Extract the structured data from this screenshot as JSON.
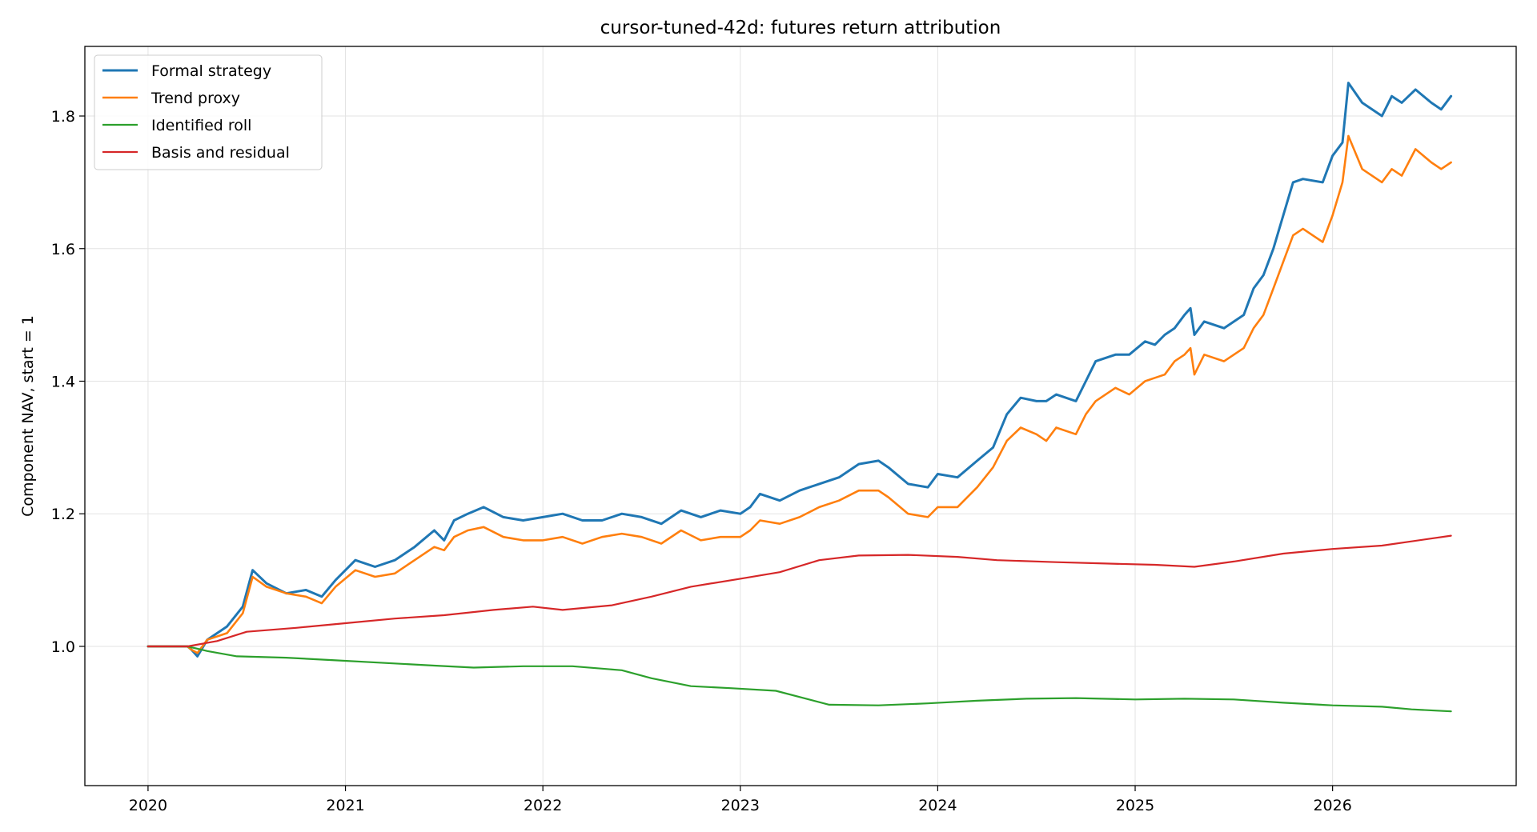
{
  "chart_data": {
    "type": "line",
    "title": "cursor-tuned-42d: futures return attribution",
    "xlabel": "",
    "ylabel": "Component NAV, start = 1",
    "xlim": [
      2019.68,
      2026.93
    ],
    "ylim": [
      0.79,
      1.905
    ],
    "x_ticks": [
      "2020",
      "2021",
      "2022",
      "2023",
      "2024",
      "2025",
      "2026"
    ],
    "y_ticks": [
      "1.0",
      "1.2",
      "1.4",
      "1.6",
      "1.8"
    ],
    "grid": true,
    "legend_position": "upper left",
    "series": [
      {
        "name": "Formal strategy",
        "color": "#1f77b4",
        "x": [
          2020.0,
          2020.2,
          2020.22,
          2020.25,
          2020.3,
          2020.4,
          2020.48,
          2020.53,
          2020.6,
          2020.7,
          2020.8,
          2020.88,
          2020.95,
          2021.05,
          2021.15,
          2021.25,
          2021.35,
          2021.45,
          2021.5,
          2021.55,
          2021.62,
          2021.7,
          2021.8,
          2021.9,
          2022.0,
          2022.1,
          2022.2,
          2022.3,
          2022.4,
          2022.5,
          2022.6,
          2022.7,
          2022.8,
          2022.9,
          2023.0,
          2023.05,
          2023.1,
          2023.2,
          2023.3,
          2023.4,
          2023.5,
          2023.6,
          2023.7,
          2023.75,
          2023.85,
          2023.95,
          2024.0,
          2024.1,
          2024.2,
          2024.28,
          2024.35,
          2024.42,
          2024.5,
          2024.55,
          2024.6,
          2024.7,
          2024.75,
          2024.8,
          2024.9,
          2024.97,
          2025.05,
          2025.1,
          2025.15,
          2025.2,
          2025.25,
          2025.28,
          2025.3,
          2025.35,
          2025.45,
          2025.55,
          2025.6,
          2025.65,
          2025.7,
          2025.75,
          2025.8,
          2025.85,
          2025.95,
          2026.0,
          2026.05,
          2026.08,
          2026.15,
          2026.25,
          2026.3,
          2026.35,
          2026.42,
          2026.5,
          2026.55,
          2026.6
        ],
        "y": [
          1.0,
          1.0,
          0.995,
          0.985,
          1.01,
          1.03,
          1.06,
          1.115,
          1.095,
          1.08,
          1.085,
          1.075,
          1.1,
          1.13,
          1.12,
          1.13,
          1.15,
          1.175,
          1.16,
          1.19,
          1.2,
          1.21,
          1.195,
          1.19,
          1.195,
          1.2,
          1.19,
          1.19,
          1.2,
          1.195,
          1.185,
          1.205,
          1.195,
          1.205,
          1.2,
          1.21,
          1.23,
          1.22,
          1.235,
          1.245,
          1.255,
          1.275,
          1.28,
          1.27,
          1.245,
          1.24,
          1.26,
          1.255,
          1.28,
          1.3,
          1.35,
          1.375,
          1.37,
          1.37,
          1.38,
          1.37,
          1.4,
          1.43,
          1.44,
          1.44,
          1.46,
          1.455,
          1.47,
          1.48,
          1.5,
          1.51,
          1.47,
          1.49,
          1.48,
          1.5,
          1.54,
          1.56,
          1.6,
          1.65,
          1.7,
          1.705,
          1.7,
          1.74,
          1.76,
          1.85,
          1.82,
          1.8,
          1.83,
          1.82,
          1.84,
          1.82,
          1.81,
          1.83
        ]
      },
      {
        "name": "Trend proxy",
        "color": "#ff7f0e",
        "x": [
          2020.0,
          2020.2,
          2020.22,
          2020.25,
          2020.3,
          2020.4,
          2020.48,
          2020.53,
          2020.6,
          2020.7,
          2020.8,
          2020.88,
          2020.95,
          2021.05,
          2021.15,
          2021.25,
          2021.35,
          2021.45,
          2021.5,
          2021.55,
          2021.62,
          2021.7,
          2021.8,
          2021.9,
          2022.0,
          2022.1,
          2022.2,
          2022.3,
          2022.4,
          2022.5,
          2022.6,
          2022.7,
          2022.8,
          2022.9,
          2023.0,
          2023.05,
          2023.1,
          2023.2,
          2023.3,
          2023.4,
          2023.5,
          2023.6,
          2023.7,
          2023.75,
          2023.85,
          2023.95,
          2024.0,
          2024.1,
          2024.2,
          2024.28,
          2024.35,
          2024.42,
          2024.5,
          2024.55,
          2024.6,
          2024.7,
          2024.75,
          2024.8,
          2024.9,
          2024.97,
          2025.05,
          2025.1,
          2025.15,
          2025.2,
          2025.25,
          2025.28,
          2025.3,
          2025.35,
          2025.45,
          2025.55,
          2025.6,
          2025.65,
          2025.7,
          2025.75,
          2025.8,
          2025.85,
          2025.95,
          2026.0,
          2026.05,
          2026.08,
          2026.15,
          2026.25,
          2026.3,
          2026.35,
          2026.42,
          2026.5,
          2026.55,
          2026.6
        ],
        "y": [
          1.0,
          1.0,
          0.995,
          0.99,
          1.01,
          1.02,
          1.05,
          1.105,
          1.09,
          1.08,
          1.075,
          1.065,
          1.09,
          1.115,
          1.105,
          1.11,
          1.13,
          1.15,
          1.145,
          1.165,
          1.175,
          1.18,
          1.165,
          1.16,
          1.16,
          1.165,
          1.155,
          1.165,
          1.17,
          1.165,
          1.155,
          1.175,
          1.16,
          1.165,
          1.165,
          1.175,
          1.19,
          1.185,
          1.195,
          1.21,
          1.22,
          1.235,
          1.235,
          1.225,
          1.2,
          1.195,
          1.21,
          1.21,
          1.24,
          1.27,
          1.31,
          1.33,
          1.32,
          1.31,
          1.33,
          1.32,
          1.35,
          1.37,
          1.39,
          1.38,
          1.4,
          1.405,
          1.41,
          1.43,
          1.44,
          1.45,
          1.41,
          1.44,
          1.43,
          1.45,
          1.48,
          1.5,
          1.54,
          1.58,
          1.62,
          1.63,
          1.61,
          1.65,
          1.7,
          1.77,
          1.72,
          1.7,
          1.72,
          1.71,
          1.75,
          1.73,
          1.72,
          1.73
        ]
      },
      {
        "name": "Identified roll",
        "color": "#2ca02c",
        "x": [
          2020.0,
          2020.2,
          2020.3,
          2020.45,
          2020.7,
          2020.95,
          2021.2,
          2021.45,
          2021.65,
          2021.9,
          2022.15,
          2022.4,
          2022.55,
          2022.75,
          2022.95,
          2023.18,
          2023.45,
          2023.7,
          2023.95,
          2024.2,
          2024.45,
          2024.7,
          2025.0,
          2025.25,
          2025.5,
          2025.75,
          2026.0,
          2026.25,
          2026.4,
          2026.6
        ],
        "y": [
          1.0,
          1.0,
          0.993,
          0.985,
          0.983,
          0.979,
          0.975,
          0.971,
          0.968,
          0.97,
          0.97,
          0.964,
          0.952,
          0.94,
          0.937,
          0.933,
          0.912,
          0.911,
          0.914,
          0.918,
          0.921,
          0.922,
          0.92,
          0.921,
          0.92,
          0.915,
          0.911,
          0.909,
          0.905,
          0.902
        ]
      },
      {
        "name": "Basis and residual",
        "color": "#d62728",
        "x": [
          2020.0,
          2020.2,
          2020.35,
          2020.5,
          2020.75,
          2021.0,
          2021.25,
          2021.5,
          2021.75,
          2021.95,
          2022.1,
          2022.35,
          2022.55,
          2022.75,
          2023.0,
          2023.2,
          2023.4,
          2023.6,
          2023.85,
          2024.1,
          2024.3,
          2024.6,
          2024.85,
          2025.1,
          2025.3,
          2025.5,
          2025.75,
          2026.0,
          2026.25,
          2026.6
        ],
        "y": [
          1.0,
          1.0,
          1.008,
          1.022,
          1.028,
          1.035,
          1.042,
          1.047,
          1.055,
          1.06,
          1.055,
          1.062,
          1.075,
          1.09,
          1.102,
          1.112,
          1.13,
          1.137,
          1.138,
          1.135,
          1.13,
          1.127,
          1.125,
          1.123,
          1.12,
          1.128,
          1.14,
          1.147,
          1.152,
          1.167
        ]
      }
    ]
  }
}
